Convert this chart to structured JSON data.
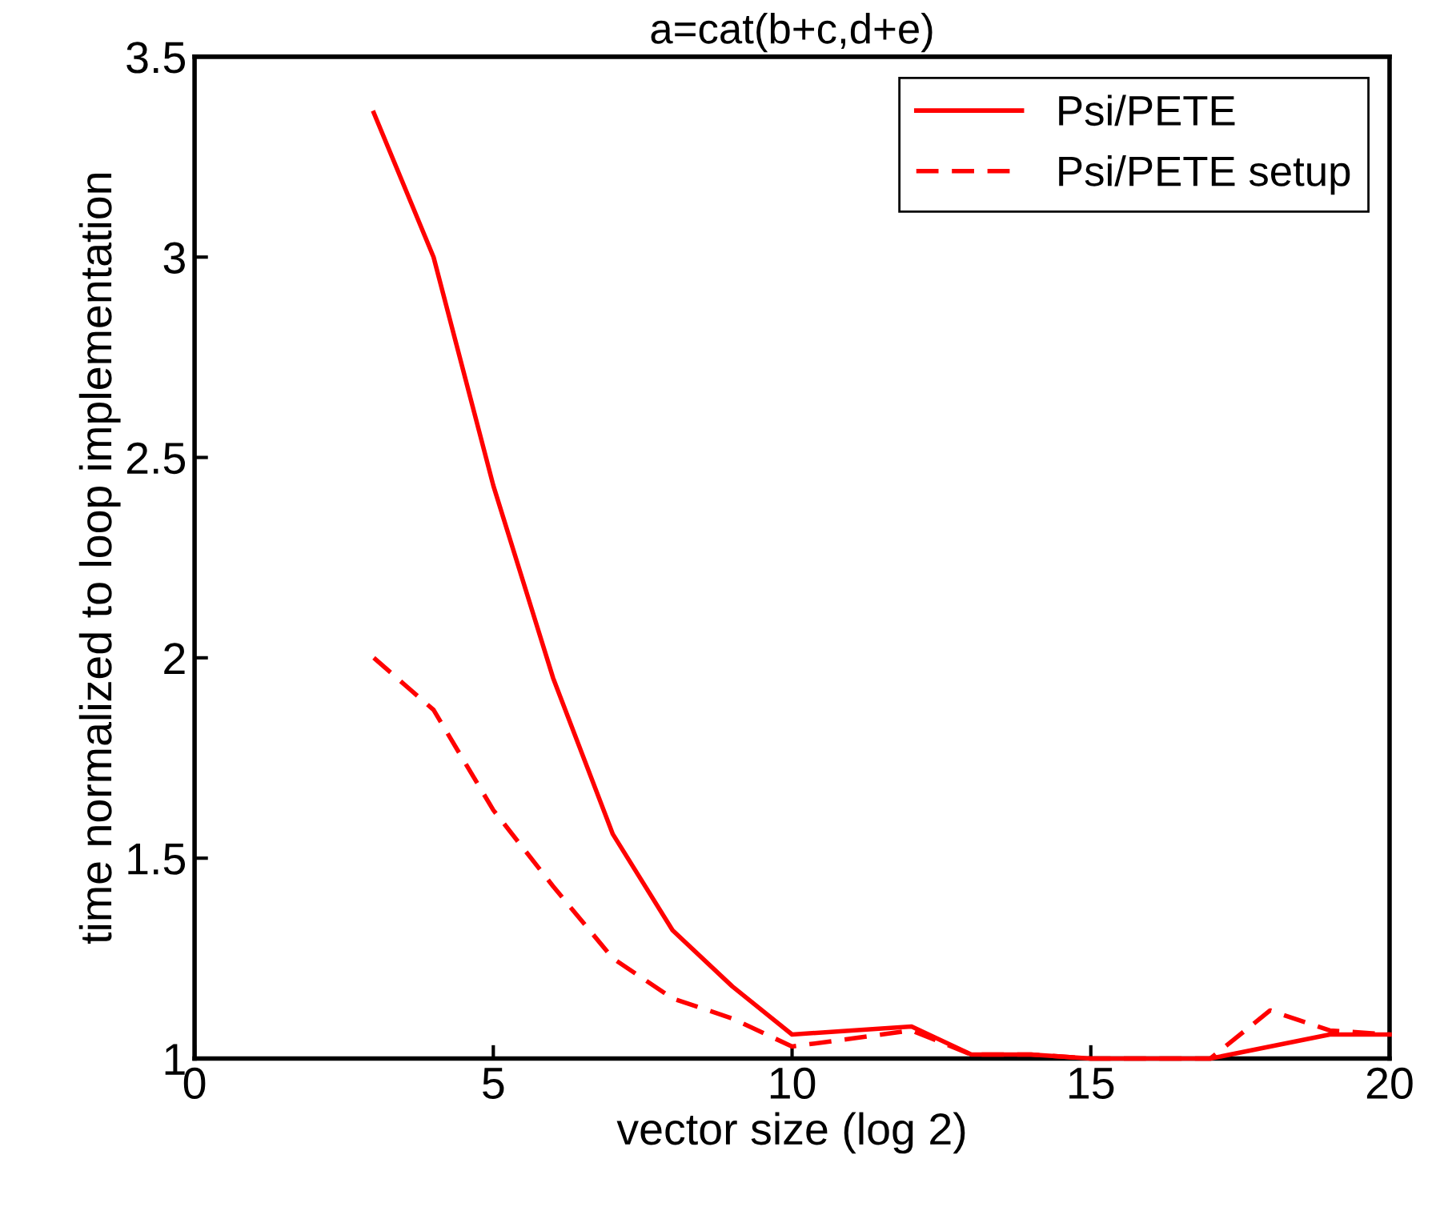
{
  "chart_data": {
    "type": "line",
    "title": "a=cat(b+c,d+e)",
    "xlabel": "vector size (log 2)",
    "ylabel": "time normalized to loop implementation",
    "x": [
      3,
      4,
      5,
      6,
      7,
      8,
      9,
      10,
      11,
      12,
      13,
      14,
      15,
      16,
      17,
      18,
      19,
      20
    ],
    "series": [
      {
        "name": "Psi/PETE",
        "color": "#ff0000",
        "line_style": "solid",
        "values": [
          3.36,
          3.0,
          2.43,
          1.95,
          1.56,
          1.32,
          1.18,
          1.06,
          1.07,
          1.08,
          1.01,
          1.01,
          1.0,
          1.0,
          1.0,
          1.03,
          1.06,
          1.06
        ]
      },
      {
        "name": "Psi/PETE setup",
        "color": "#ff0000",
        "line_style": "dashed",
        "values": [
          2.0,
          1.87,
          1.62,
          1.43,
          1.25,
          1.15,
          1.1,
          1.03,
          1.05,
          1.07,
          1.01,
          1.01,
          1.0,
          1.0,
          1.0,
          1.12,
          1.07,
          1.06
        ]
      }
    ],
    "xlim": [
      0,
      20
    ],
    "xticks": [
      0,
      5,
      10,
      15,
      20
    ],
    "ylim": [
      1,
      3.5
    ],
    "yticks": [
      1,
      1.5,
      2,
      2.5,
      3,
      3.5
    ],
    "grid": false,
    "legend": "top right"
  }
}
